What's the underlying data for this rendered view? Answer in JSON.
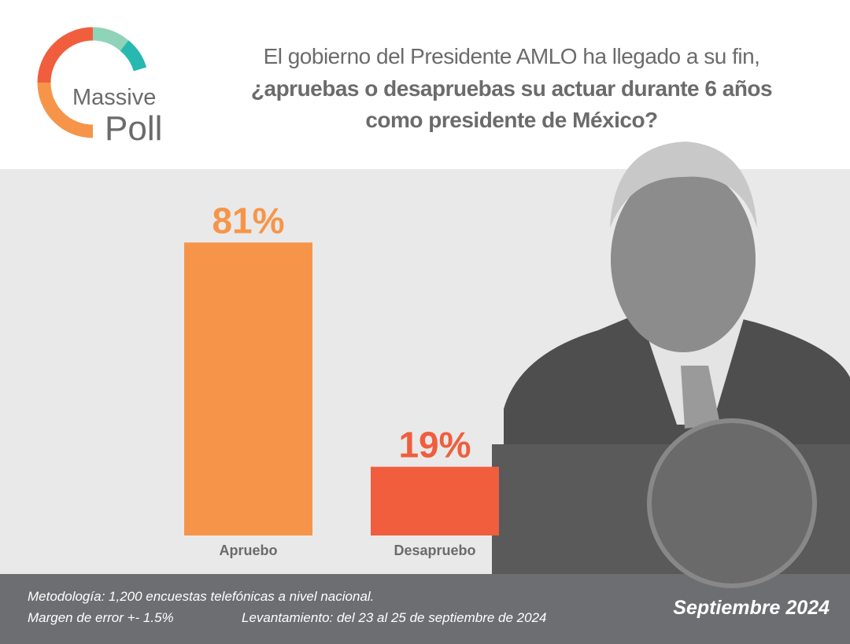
{
  "header": {
    "logo": [
      "Massive",
      "Poll"
    ]
  },
  "chart_data": {
    "type": "bar",
    "title": "El gobierno del Presidente AMLO ha llegado a su fin,",
    "subtitle": "¿apruebas o desapruebas su actuar durante 6 años como presidente de México?",
    "categories": [
      "Apruebo",
      "Desapruebo"
    ],
    "values": [
      81,
      19
    ],
    "value_labels": [
      "81%",
      "19%"
    ],
    "colors": [
      "#f6954a",
      "#f05e3e"
    ]
  },
  "footer": {
    "methodology": "Metodología: 1,200 encuestas telefónicas a nivel nacional.",
    "margin": "Margen de error +- 1.5%",
    "fieldwork": "Levantamiento: del 23 al 25 de septiembre de 2024",
    "date": "Septiembre 2024"
  }
}
